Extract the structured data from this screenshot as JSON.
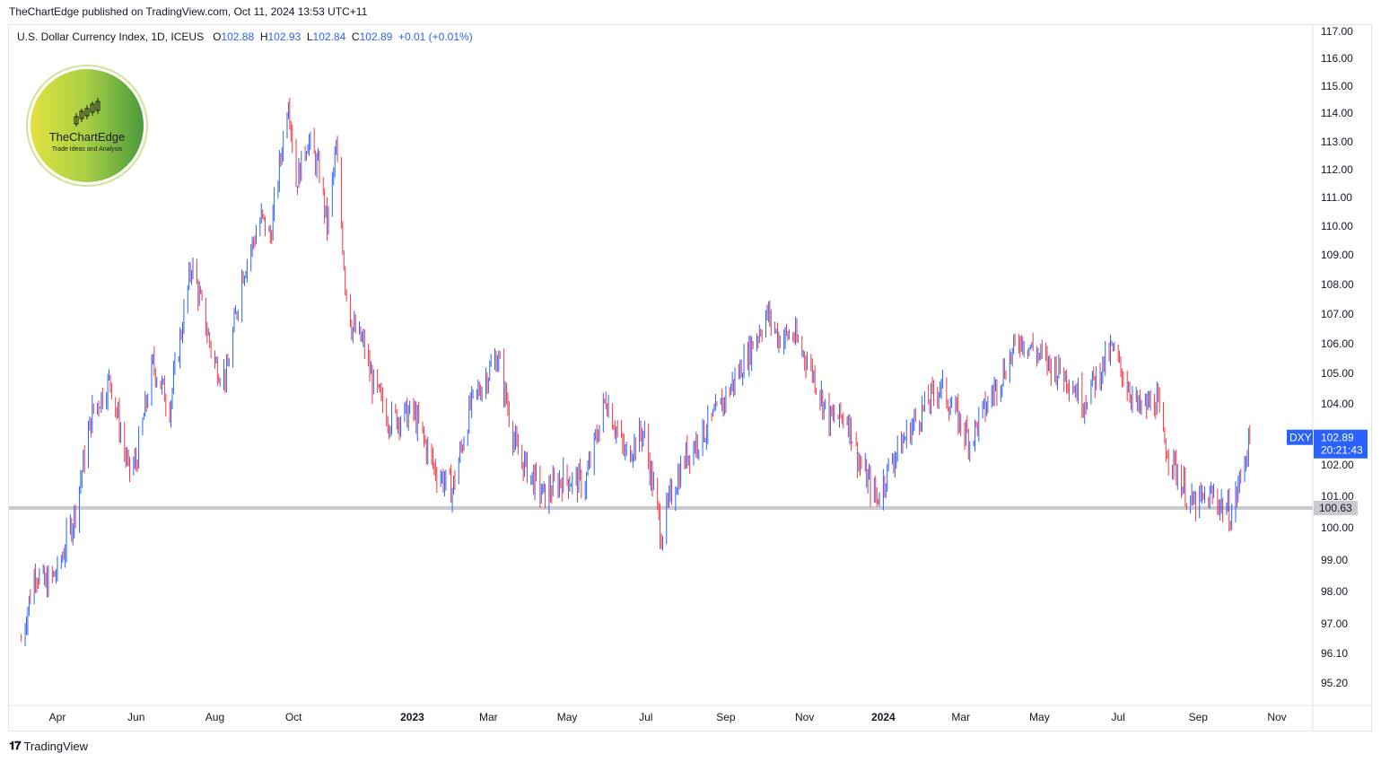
{
  "header": {
    "published_by": "TheChartEdge published on TradingView.com, Oct 11, 2024 13:53 UTC+11"
  },
  "legend": {
    "symbol_desc": "U.S. Dollar Currency Index, 1D, ICEUS",
    "o_label": "O",
    "o_value": "102.88",
    "h_label": "H",
    "h_value": "102.93",
    "l_label": "L",
    "l_value": "102.84",
    "c_label": "C",
    "c_value": "102.89",
    "change": "+0.01 (+0.01%)"
  },
  "logo": {
    "name": "TheChartEdge",
    "tagline": "Trade Ideas and Analysis"
  },
  "price_tag": {
    "symbol": "DXY",
    "price": "102.89",
    "countdown": "20:21:43"
  },
  "level_tag": "100.63",
  "footer": {
    "brand": "TradingView"
  },
  "colors": {
    "up": "#2962ff",
    "down": "#f23645",
    "level_line": "#c8cad0",
    "accent": "#2962ff"
  },
  "chart_data": {
    "type": "ohlc-bar",
    "title": "U.S. Dollar Currency Index, 1D, ICEUS",
    "ylim": [
      94.6,
      117.2
    ],
    "y_ticks": [
      "117.00",
      "116.00",
      "115.00",
      "114.00",
      "113.00",
      "112.00",
      "111.00",
      "110.00",
      "109.00",
      "108.00",
      "107.00",
      "106.00",
      "105.00",
      "104.00",
      "102.00",
      "101.00",
      "100.00",
      "99.00",
      "98.00",
      "97.00",
      "96.10",
      "95.20"
    ],
    "y_tick_values": [
      117.0,
      116.0,
      115.0,
      114.0,
      113.0,
      112.0,
      111.0,
      110.0,
      109.0,
      108.0,
      107.0,
      106.0,
      105.0,
      104.0,
      102.0,
      101.0,
      100.0,
      99.0,
      98.0,
      97.0,
      96.1,
      95.2
    ],
    "x_ticks": [
      "Apr",
      "Jun",
      "Aug",
      "Oct",
      "2023",
      "Mar",
      "May",
      "Jul",
      "Sep",
      "Nov",
      "2024",
      "Mar",
      "May",
      "Jul",
      "Sep",
      "Nov"
    ],
    "x_tick_dates": [
      "2022-04-01",
      "2022-06-01",
      "2022-08-01",
      "2022-10-01",
      "2023-01-01",
      "2023-03-01",
      "2023-05-01",
      "2023-07-01",
      "2023-09-01",
      "2023-11-01",
      "2024-01-01",
      "2024-03-01",
      "2024-05-01",
      "2024-07-01",
      "2024-09-01",
      "2024-11-01"
    ],
    "x_range": [
      "2022-03-04",
      "2024-11-28"
    ],
    "horizontal_line": 100.63,
    "last_price": 102.89,
    "close_path": [
      {
        "date": "2022-03-04",
        "close": 96.5
      },
      {
        "date": "2022-03-15",
        "close": 98.7
      },
      {
        "date": "2022-03-22",
        "close": 98.2
      },
      {
        "date": "2022-04-01",
        "close": 98.6
      },
      {
        "date": "2022-04-14",
        "close": 100.4
      },
      {
        "date": "2022-04-28",
        "close": 103.7
      },
      {
        "date": "2022-05-12",
        "close": 104.8
      },
      {
        "date": "2022-05-26",
        "close": 101.8
      },
      {
        "date": "2022-06-01",
        "close": 102.1
      },
      {
        "date": "2022-06-14",
        "close": 105.3
      },
      {
        "date": "2022-06-27",
        "close": 103.9
      },
      {
        "date": "2022-07-14",
        "close": 108.7
      },
      {
        "date": "2022-08-01",
        "close": 105.3
      },
      {
        "date": "2022-08-10",
        "close": 104.9
      },
      {
        "date": "2022-08-22",
        "close": 108.3
      },
      {
        "date": "2022-09-06",
        "close": 110.3
      },
      {
        "date": "2022-09-13",
        "close": 109.6
      },
      {
        "date": "2022-09-27",
        "close": 114.6
      },
      {
        "date": "2022-10-03",
        "close": 111.5
      },
      {
        "date": "2022-10-12",
        "close": 113.1
      },
      {
        "date": "2022-10-21",
        "close": 111.9
      },
      {
        "date": "2022-10-27",
        "close": 110.0
      },
      {
        "date": "2022-11-03",
        "close": 112.7
      },
      {
        "date": "2022-11-10",
        "close": 108.1
      },
      {
        "date": "2022-11-15",
        "close": 106.6
      },
      {
        "date": "2022-11-24",
        "close": 106.0
      },
      {
        "date": "2022-12-01",
        "close": 104.7
      },
      {
        "date": "2022-12-14",
        "close": 103.5
      },
      {
        "date": "2023-01-02",
        "close": 103.7
      },
      {
        "date": "2023-01-18",
        "close": 101.9
      },
      {
        "date": "2023-02-01",
        "close": 101.2
      },
      {
        "date": "2023-02-15",
        "close": 103.9
      },
      {
        "date": "2023-03-08",
        "close": 105.6
      },
      {
        "date": "2023-03-23",
        "close": 102.4
      },
      {
        "date": "2023-04-13",
        "close": 101.0
      },
      {
        "date": "2023-04-28",
        "close": 101.6
      },
      {
        "date": "2023-05-15",
        "close": 101.4
      },
      {
        "date": "2023-05-31",
        "close": 104.2
      },
      {
        "date": "2023-06-15",
        "close": 102.3
      },
      {
        "date": "2023-06-29",
        "close": 103.1
      },
      {
        "date": "2023-07-13",
        "close": 99.8
      },
      {
        "date": "2023-07-21",
        "close": 101.1
      },
      {
        "date": "2023-08-01",
        "close": 102.3
      },
      {
        "date": "2023-08-24",
        "close": 103.6
      },
      {
        "date": "2023-09-14",
        "close": 105.3
      },
      {
        "date": "2023-10-03",
        "close": 107.0
      },
      {
        "date": "2023-10-12",
        "close": 106.2
      },
      {
        "date": "2023-10-23",
        "close": 106.3
      },
      {
        "date": "2023-11-06",
        "close": 105.2
      },
      {
        "date": "2023-11-20",
        "close": 103.5
      },
      {
        "date": "2023-12-04",
        "close": 103.6
      },
      {
        "date": "2023-12-14",
        "close": 102.0
      },
      {
        "date": "2023-12-27",
        "close": 100.9
      },
      {
        "date": "2024-01-08",
        "close": 102.2
      },
      {
        "date": "2024-01-25",
        "close": 103.4
      },
      {
        "date": "2024-02-14",
        "close": 104.6
      },
      {
        "date": "2024-03-08",
        "close": 102.8
      },
      {
        "date": "2024-03-25",
        "close": 104.3
      },
      {
        "date": "2024-04-16",
        "close": 106.2
      },
      {
        "date": "2024-05-09",
        "close": 105.3
      },
      {
        "date": "2024-05-23",
        "close": 104.9
      },
      {
        "date": "2024-06-04",
        "close": 104.1
      },
      {
        "date": "2024-06-26",
        "close": 105.8
      },
      {
        "date": "2024-07-17",
        "close": 103.8
      },
      {
        "date": "2024-07-31",
        "close": 104.1
      },
      {
        "date": "2024-08-05",
        "close": 102.8
      },
      {
        "date": "2024-08-27",
        "close": 100.7
      },
      {
        "date": "2024-09-13",
        "close": 101.0
      },
      {
        "date": "2024-09-27",
        "close": 100.4
      },
      {
        "date": "2024-10-11",
        "close": 102.89
      }
    ]
  }
}
